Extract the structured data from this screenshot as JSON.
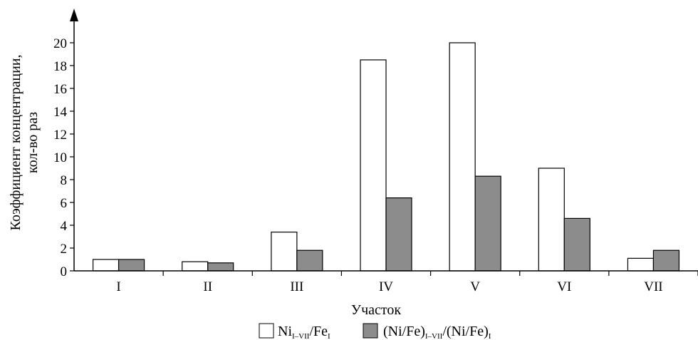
{
  "chart_data": {
    "type": "bar",
    "categories": [
      "I",
      "II",
      "III",
      "IV",
      "V",
      "VI",
      "VII"
    ],
    "series": [
      {
        "name": "Ni_{I–VII}/Fe_{I}",
        "name_main_1": "Ni",
        "name_sub_1": "I–VII",
        "name_main_2": "/Fe",
        "name_sub_2": "I",
        "values": [
          1.0,
          0.8,
          3.4,
          18.5,
          20.0,
          9.0,
          1.1
        ],
        "color": "#ffffff"
      },
      {
        "name": "(Ni/Fe)_{I–VII}/(Ni/Fe)_{I}",
        "name_main_1": "(Ni/Fe)",
        "name_sub_1": "I–VII",
        "name_main_2": "/(Ni/Fe)",
        "name_sub_2": "I",
        "values": [
          1.0,
          0.7,
          1.8,
          6.4,
          8.3,
          4.6,
          1.8
        ],
        "color": "#8c8c8c"
      }
    ],
    "xlabel": "Участок",
    "ylabel_line1": "Коэффициент концентрации,",
    "ylabel_line2": "кол-во раз",
    "yticks": [
      "0",
      "2",
      "4",
      "6",
      "8",
      "10",
      "12",
      "14",
      "16",
      "18",
      "20"
    ],
    "ylim": [
      0,
      20
    ],
    "grid": false,
    "legend_position": "bottom"
  }
}
